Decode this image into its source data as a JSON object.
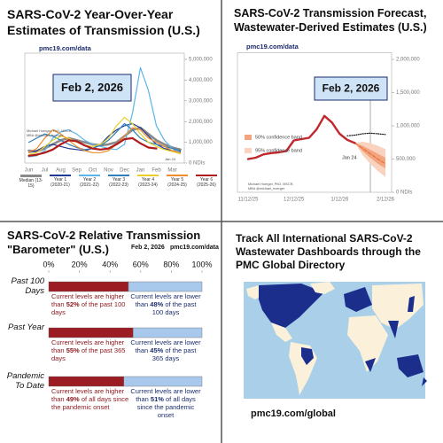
{
  "chart_data": [
    {
      "type": "line",
      "title": "SARS-CoV-2 Year-Over-Year Estimates of Transmission (U.S.)",
      "source": "pmc19.com/data",
      "date_label": "Feb 2, 2026",
      "credit": "Michael Hoerger, PhD, MSCR, MBA @michael_hoerger",
      "end_label": "Jan 24",
      "categories": [
        "Jun",
        null,
        "Jul",
        null,
        "Aug",
        null,
        "Sep",
        null,
        "Oct",
        null,
        "Nov",
        null,
        "Dec",
        null,
        "Jan",
        null,
        "Feb",
        null,
        "Mar",
        null
      ],
      "ylim": [
        0,
        5300000
      ],
      "yticks": [
        {
          "value": 0,
          "label": "0 NDIs"
        },
        {
          "value": 1000000,
          "label": "1,000,000"
        },
        {
          "value": 2000000,
          "label": "2,000,000"
        },
        {
          "value": 3000000,
          "label": "3,000,000"
        },
        {
          "value": 4000000,
          "label": "4,000,000"
        },
        {
          "value": 5000000,
          "label": "5,000,000"
        }
      ],
      "grid": false,
      "legend": "bottom",
      "series": [
        {
          "name": "Median (13-15)",
          "color": "#8a8a8a",
          "values": [
            600000,
            550000,
            700000,
            900000,
            1100000,
            1200000,
            1100000,
            1000000,
            900000,
            850000,
            900000,
            1000000,
            1300000,
            1600000,
            1700000,
            1400000,
            1100000,
            900000,
            750000,
            650000
          ]
        },
        {
          "name": "Year 1 (2020-21)",
          "color": "#1f3a93",
          "values": [
            500000,
            600000,
            800000,
            900000,
            800000,
            700000,
            650000,
            600000,
            700000,
            900000,
            1300000,
            1600000,
            1800000,
            1900000,
            1700000,
            1300000,
            900000,
            700000,
            600000,
            550000
          ]
        },
        {
          "name": "Year 2 (2021-22)",
          "color": "#5bb5e8",
          "values": [
            300000,
            350000,
            600000,
            1200000,
            1500000,
            1600000,
            1400000,
            1100000,
            900000,
            800000,
            700000,
            650000,
            900000,
            2400000,
            4600000,
            3500000,
            1800000,
            1100000,
            700000,
            500000
          ]
        },
        {
          "name": "Year 3 (2022-23)",
          "color": "#2f7fb8",
          "values": [
            1000000,
            1200000,
            1400000,
            1300000,
            1100000,
            900000,
            750000,
            650000,
            700000,
            850000,
            1100000,
            1500000,
            1900000,
            1600000,
            1200000,
            1000000,
            900000,
            800000,
            700000,
            600000
          ]
        },
        {
          "name": "Year 4 (2023-24)",
          "color": "#e8d028",
          "values": [
            400000,
            500000,
            800000,
            1100000,
            1300000,
            1200000,
            1000000,
            850000,
            800000,
            900000,
            1200000,
            1800000,
            2200000,
            1900000,
            1400000,
            1000000,
            800000,
            650000,
            550000,
            450000
          ]
        },
        {
          "name": "Year 5 (2024-25)",
          "color": "#f08c2c",
          "values": [
            500000,
            700000,
            1200000,
            1600000,
            1400000,
            1100000,
            800000,
            600000,
            500000,
            500000,
            600000,
            900000,
            1300000,
            1700000,
            1600000,
            1200000,
            1000000,
            800000,
            600000,
            500000
          ]
        },
        {
          "name": "Year 6 (2025-26)",
          "color": "#b01c1c",
          "values": [
            350000,
            400000,
            500000,
            650000,
            900000,
            1100000,
            1050000,
            850000,
            700000,
            650000,
            700000,
            900000,
            1150000,
            1200000,
            950000,
            750000,
            700000,
            null,
            null,
            null
          ]
        }
      ]
    },
    {
      "type": "line",
      "title": "SARS-CoV-2 Transmission Forecast, Wastewater-Derived Estimates (U.S.)",
      "source": "pmc19.com/data",
      "date_label": "Feb 2, 2026",
      "credit": "Michael Hoerger, PhD, MSCR, MBA @michael_hoerger",
      "end_label": "Jan 24",
      "categories": [
        "11/12/25",
        null,
        null,
        null,
        null,
        null,
        "12/12/25",
        null,
        null,
        null,
        null,
        null,
        "1/12/26",
        null,
        null,
        null,
        null,
        null,
        "2/12/26"
      ],
      "ylim": [
        0,
        2100000
      ],
      "yticks": [
        {
          "value": 0,
          "label": "0 NDIs"
        },
        {
          "value": 500000,
          "label": "500,000"
        },
        {
          "value": 1000000,
          "label": "1,000,000"
        },
        {
          "value": 1500000,
          "label": "1,500,000"
        },
        {
          "value": 2000000,
          "label": "2,000,000"
        }
      ],
      "grid": false,
      "legend": "left",
      "series": [
        {
          "name": "95% confidence band",
          "color": "#f9d3bf",
          "lower": [
            null,
            null,
            null,
            null,
            null,
            null,
            null,
            null,
            null,
            null,
            null,
            null,
            null,
            null,
            740000,
            560000,
            430000,
            320000,
            230000
          ],
          "upper": [
            null,
            null,
            null,
            null,
            null,
            null,
            null,
            null,
            null,
            null,
            null,
            null,
            null,
            null,
            740000,
            760000,
            740000,
            700000,
            650000
          ]
        },
        {
          "name": "50% confidence band",
          "color": "#f2a57f",
          "lower": [
            null,
            null,
            null,
            null,
            null,
            null,
            null,
            null,
            null,
            null,
            null,
            null,
            null,
            null,
            740000,
            620000,
            520000,
            430000,
            360000
          ],
          "upper": [
            null,
            null,
            null,
            null,
            null,
            null,
            null,
            null,
            null,
            null,
            null,
            null,
            null,
            null,
            740000,
            700000,
            640000,
            580000,
            520000
          ]
        },
        {
          "color": "#111111",
          "dash": "dotted",
          "values": [
            null,
            null,
            null,
            null,
            null,
            null,
            null,
            null,
            null,
            null,
            null,
            null,
            null,
            850000,
            860000,
            880000,
            890000,
            880000,
            870000
          ]
        },
        {
          "color": "#e8703a",
          "dash": "dashed",
          "values": [
            null,
            null,
            null,
            null,
            null,
            null,
            null,
            null,
            null,
            null,
            null,
            null,
            null,
            null,
            740000,
            660000,
            580000,
            500000,
            430000
          ]
        },
        {
          "color": "#c0282d",
          "values": [
            500000,
            520000,
            570000,
            590000,
            600000,
            620000,
            780000,
            800000,
            820000,
            950000,
            1150000,
            1050000,
            880000,
            790000,
            740000,
            null,
            null,
            null,
            null
          ]
        }
      ]
    },
    {
      "type": "bar",
      "orientation": "horizontal",
      "stacked": true,
      "title": "SARS-CoV-2 Relative Transmission \"Barometer\" (U.S.)",
      "date_label": "Feb 2, 2026",
      "source": "pmc19.com/data",
      "categories": [
        "Past 100 Days",
        "Past Year",
        "Pandemic To Date"
      ],
      "xlim": [
        0,
        100
      ],
      "xticks": [
        {
          "value": 0,
          "label": "0%"
        },
        {
          "value": 20,
          "label": "20%"
        },
        {
          "value": 40,
          "label": "40%"
        },
        {
          "value": 60,
          "label": "60%"
        },
        {
          "value": 80,
          "label": "80%"
        },
        {
          "value": 100,
          "label": "100%"
        }
      ],
      "series": [
        {
          "color": "#9b1c23",
          "values": [
            52,
            55,
            49
          ],
          "value_labels": [
            "52%",
            "55%",
            "49%"
          ],
          "lead": [
            "Current levels are higher than",
            "Current levels are higher than",
            "Current levels are higher than"
          ],
          "tail": [
            "of the past 100 days",
            "of the past 365 days",
            "of all days since the pandemic onset"
          ]
        },
        {
          "color": "#a9c9ec",
          "values": [
            48,
            45,
            51
          ],
          "value_labels": [
            "48%",
            "45%",
            "51%"
          ],
          "lead": [
            "Current levels are lower than",
            "Current levels are lower than",
            "Current levels are lower than"
          ],
          "tail": [
            "of the past 100 days",
            "of the past 365 days",
            "of all days since the pandemic onset"
          ]
        }
      ]
    }
  ],
  "map_panel": {
    "title": "Track All International SARS-CoV-2 Wastewater Dashboards through the PMC Global Directory",
    "url": "pmc19.com/global"
  }
}
